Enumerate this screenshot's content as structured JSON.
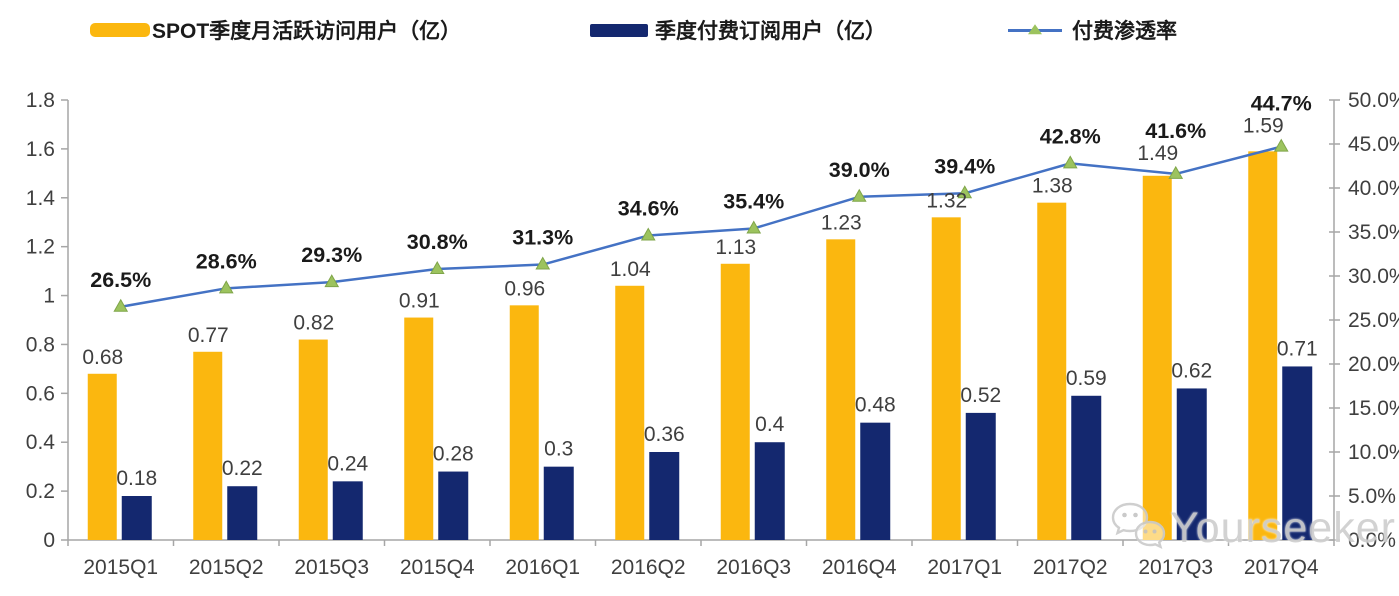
{
  "colors": {
    "mau_bar": "#FBB70F",
    "sub_bar": "#14286F",
    "line": "#4472C4",
    "marker_fill": "#9CC35E",
    "marker_stroke": "#7FA549",
    "axis": "#A6A6A6",
    "tick_text": "#3F3F3F",
    "value_label": "#3F3F3F",
    "pct_label": "#1A1A1A"
  },
  "legend": {
    "items": [
      {
        "label": "SPOT季度月活跃访问用户（亿）",
        "type": "bar"
      },
      {
        "label": "季度付费订阅用户（亿）",
        "type": "bar"
      },
      {
        "label": "付费渗透率",
        "type": "line"
      }
    ]
  },
  "watermark": {
    "text": "Yourseeker",
    "icon": "wechat-icon"
  },
  "chart_data": {
    "type": "bar",
    "subtype": "bar-line-combo",
    "categories": [
      "2015Q1",
      "2015Q2",
      "2015Q3",
      "2015Q4",
      "2016Q1",
      "2016Q2",
      "2016Q3",
      "2016Q4",
      "2017Q1",
      "2017Q2",
      "2017Q3",
      "2017Q4"
    ],
    "series": [
      {
        "name": "SPOT季度月活跃访问用户（亿）",
        "type": "bar",
        "axis": "left",
        "values": [
          0.68,
          0.77,
          0.82,
          0.91,
          0.96,
          1.04,
          1.13,
          1.23,
          1.32,
          1.38,
          1.49,
          1.59
        ],
        "labels": [
          "0.68",
          "0.77",
          "0.82",
          "0.91",
          "0.96",
          "1.04",
          "1.13",
          "1.23",
          "1.32",
          "1.38",
          "1.49",
          "1.59"
        ]
      },
      {
        "name": "季度付费订阅用户（亿）",
        "type": "bar",
        "axis": "left",
        "values": [
          0.18,
          0.22,
          0.24,
          0.28,
          0.3,
          0.36,
          0.4,
          0.48,
          0.52,
          0.59,
          0.62,
          0.71
        ],
        "labels": [
          "0.18",
          "0.22",
          "0.24",
          "0.28",
          "0.3",
          "0.36",
          "0.4",
          "0.48",
          "0.52",
          "0.59",
          "0.62",
          "0.71"
        ]
      },
      {
        "name": "付费渗透率",
        "type": "line",
        "axis": "right",
        "marker": "triangle-up",
        "values": [
          26.5,
          28.6,
          29.3,
          30.8,
          31.3,
          34.6,
          35.4,
          39.0,
          39.4,
          42.8,
          41.6,
          44.7
        ],
        "labels": [
          "26.5%",
          "28.6%",
          "29.3%",
          "30.8%",
          "31.3%",
          "34.6%",
          "35.4%",
          "39.0%",
          "39.4%",
          "42.8%",
          "41.6%",
          "44.7%"
        ]
      }
    ],
    "left_axis": {
      "min": 0,
      "max": 1.8,
      "step": 0.2,
      "tick_labels": [
        "0",
        "0.2",
        "0.4",
        "0.6",
        "0.8",
        "1",
        "1.2",
        "1.4",
        "1.6",
        "1.8"
      ]
    },
    "right_axis": {
      "min": 0,
      "max": 50,
      "step": 5,
      "tick_labels": [
        "0.0%",
        "5.0%",
        "10.0%",
        "15.0%",
        "20.0%",
        "25.0%",
        "30.0%",
        "35.0%",
        "40.0%",
        "45.0%",
        "50.0%"
      ]
    },
    "grid": false,
    "legend_position": "top"
  }
}
